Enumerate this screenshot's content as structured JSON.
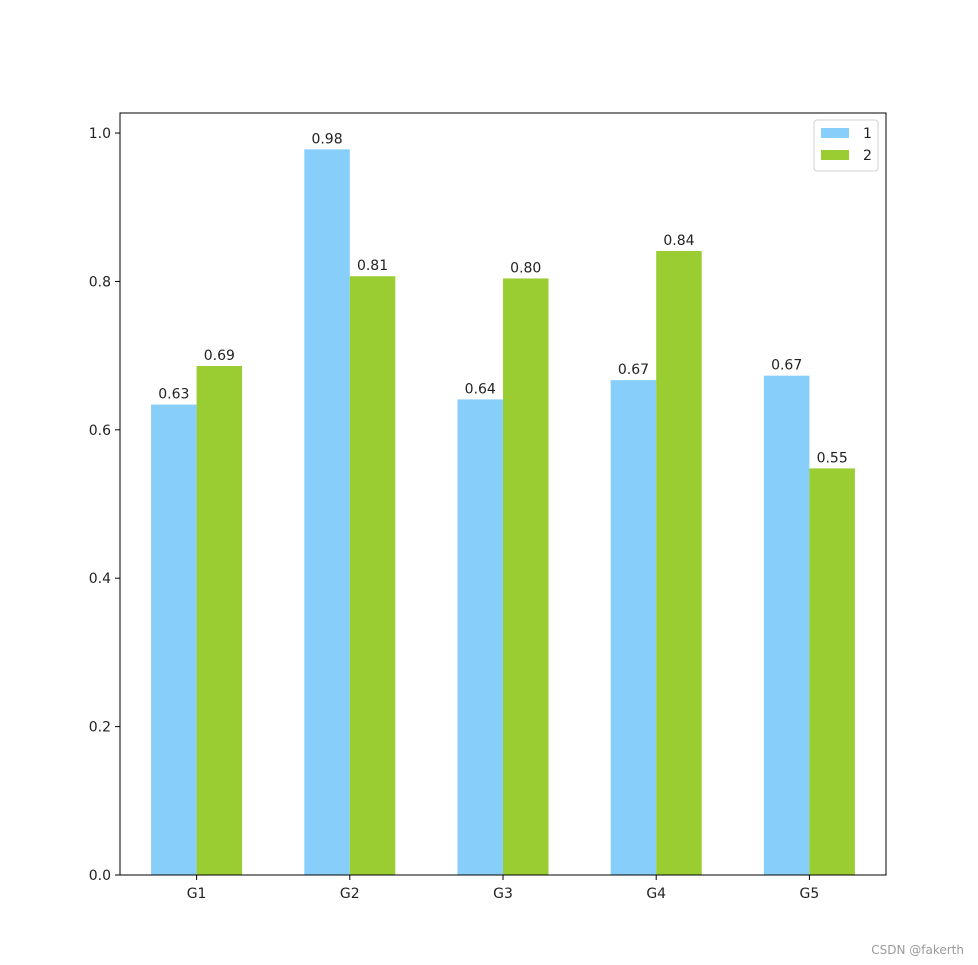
{
  "chart_data": {
    "type": "bar",
    "title": "",
    "xlabel": "",
    "ylabel": "",
    "categories": [
      "G1",
      "G2",
      "G3",
      "G4",
      "G5"
    ],
    "ylim": [
      0,
      1.027
    ],
    "yticks": [
      "0.0",
      "0.2",
      "0.4",
      "0.6",
      "0.8",
      "1.0"
    ],
    "ytick_values": [
      0.0,
      0.2,
      0.4,
      0.6,
      0.8,
      1.0
    ],
    "grid": false,
    "legend_position": "top-right",
    "series": [
      {
        "name": "1",
        "color": "#87CEFA",
        "values": [
          0.634,
          0.978,
          0.641,
          0.667,
          0.673
        ],
        "labels": [
          "0.63",
          "0.98",
          "0.64",
          "0.67",
          "0.67"
        ]
      },
      {
        "name": "2",
        "color": "#9ACD32",
        "values": [
          0.686,
          0.807,
          0.804,
          0.841,
          0.548
        ],
        "labels": [
          "0.69",
          "0.81",
          "0.80",
          "0.84",
          "0.55"
        ]
      }
    ]
  },
  "watermark": "CSDN @fakerth"
}
